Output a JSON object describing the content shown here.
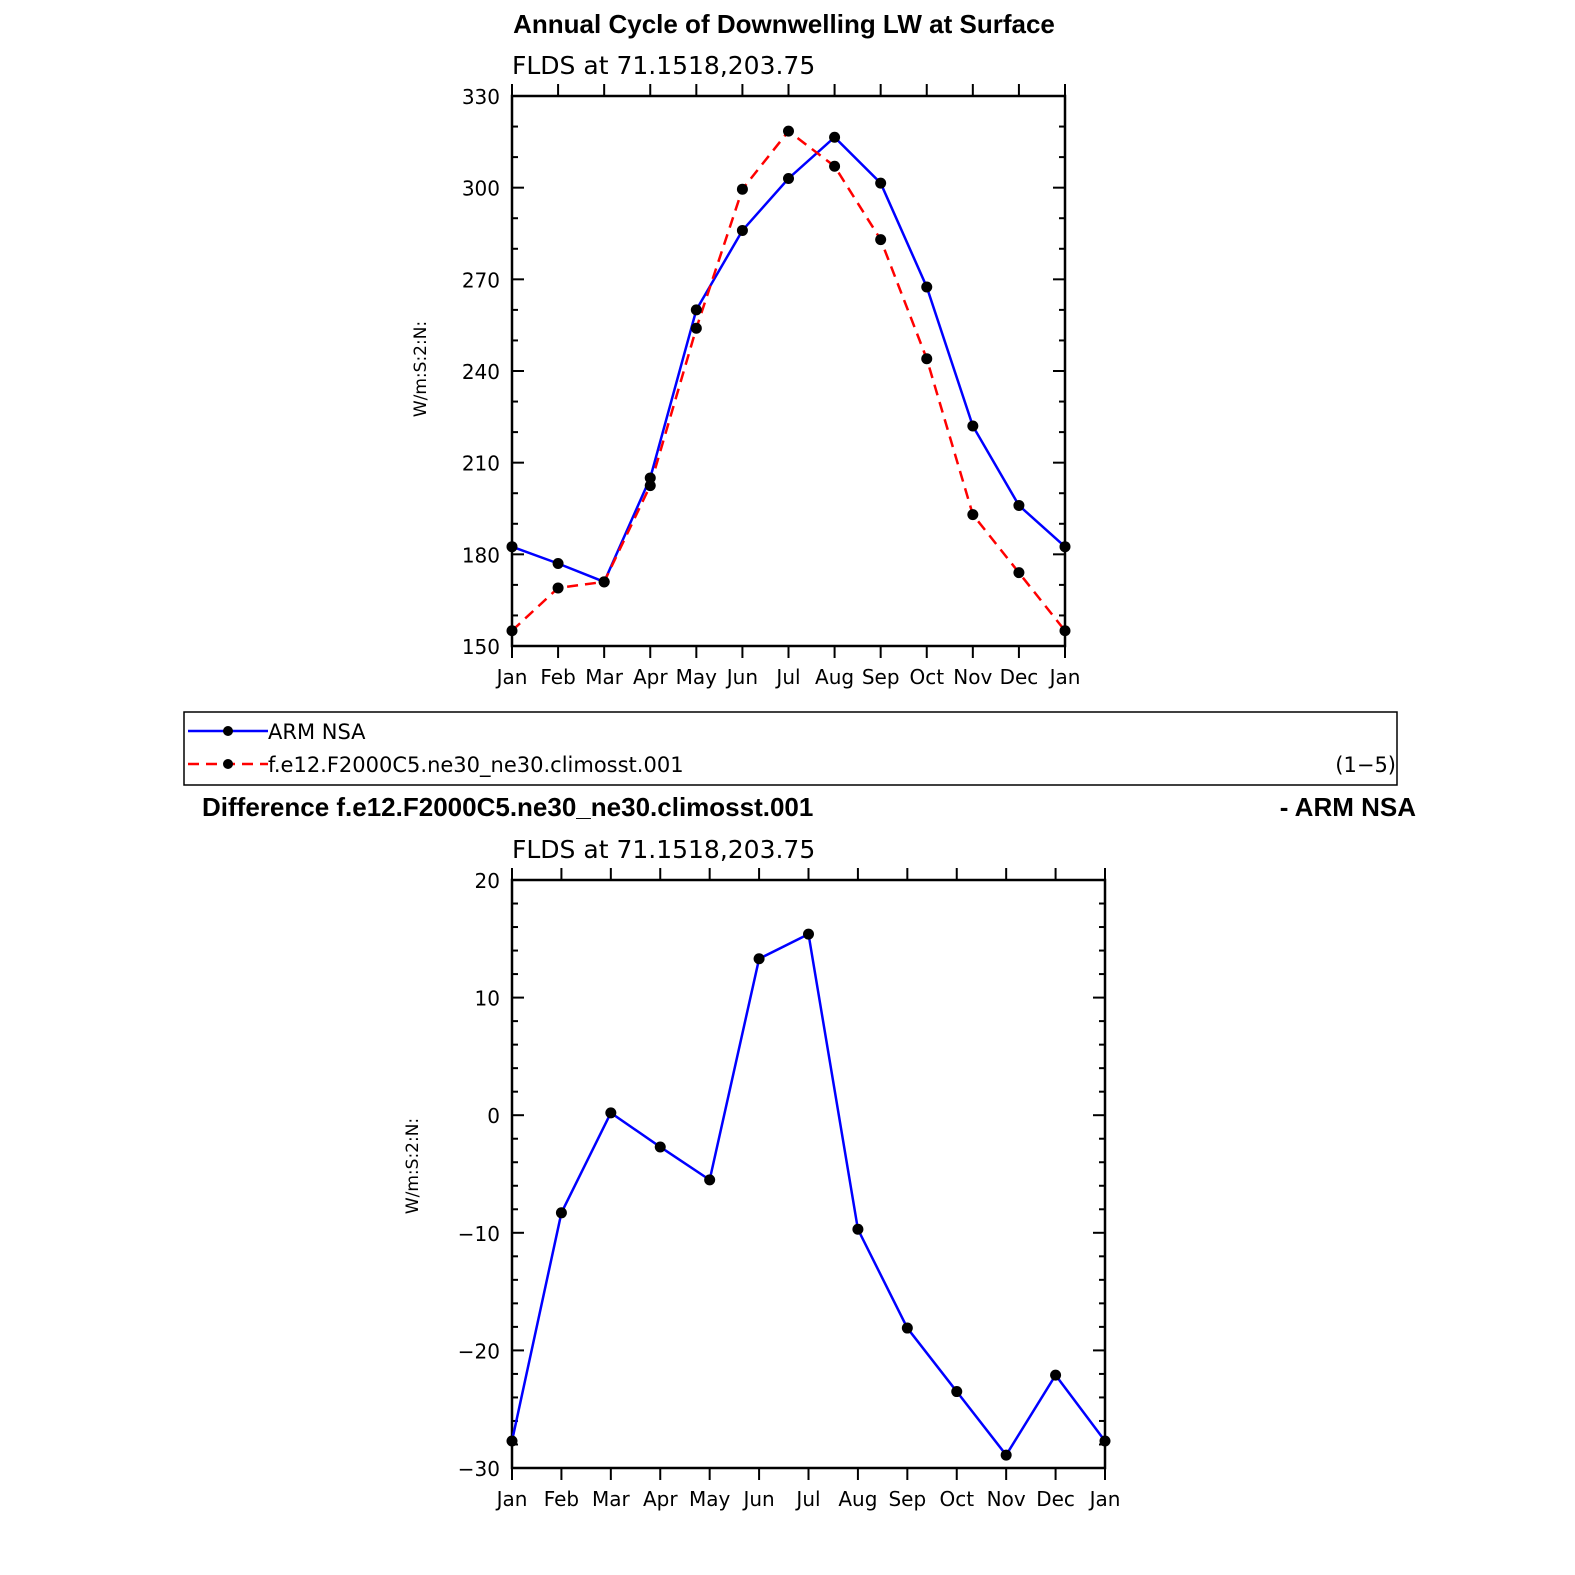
{
  "chart_data": [
    {
      "type": "line",
      "title": "Annual Cycle of Downwelling LW at Surface",
      "subtitle": "FLDS at 71.1518,203.75",
      "ylabel": "W/m:S:2:N:",
      "ylim": [
        150,
        330
      ],
      "yticks": [
        "330",
        "300",
        "270",
        "240",
        "210",
        "180",
        "150"
      ],
      "ytick_values": [
        330,
        300,
        270,
        240,
        210,
        180,
        150
      ],
      "categories": [
        "Jan",
        "Feb",
        "Mar",
        "Apr",
        "May",
        "Jun",
        "Jul",
        "Aug",
        "Sep",
        "Oct",
        "Nov",
        "Dec",
        "Jan"
      ],
      "series": [
        {
          "name": "ARM NSA",
          "color": "#0000ff",
          "dash": "solid",
          "values": [
            182.5,
            177,
            171,
            205,
            260,
            286,
            303,
            316.5,
            301.5,
            267.5,
            222,
            196,
            182.5
          ]
        },
        {
          "name": "f.e12.F2000C5.ne30_ne30.climosst.001",
          "color": "#ff0000",
          "dash": "dashed",
          "values": [
            155,
            169,
            171,
            202.5,
            254,
            299.5,
            318.5,
            307,
            283,
            244,
            193,
            174,
            155
          ]
        }
      ],
      "legend": {
        "placement": "bottom",
        "note": "(1−5)"
      }
    },
    {
      "type": "line",
      "title_left": "Difference f.e12.F2000C5.ne30_ne30.climosst.001",
      "title_right": "- ARM NSA",
      "subtitle": "FLDS at 71.1518,203.75",
      "ylabel": "W/m:S:2:N:",
      "ylim": [
        -30,
        20
      ],
      "yticks": [
        "20",
        "10",
        "0",
        "−10",
        "−20",
        "−30"
      ],
      "ytick_values": [
        20,
        10,
        0,
        -10,
        -20,
        -30
      ],
      "categories": [
        "Jan",
        "Feb",
        "Mar",
        "Apr",
        "May",
        "Jun",
        "Jul",
        "Aug",
        "Sep",
        "Oct",
        "Nov",
        "Dec",
        "Jan"
      ],
      "series": [
        {
          "color": "#0000ff",
          "dash": "solid",
          "values": [
            -27.7,
            -8.3,
            0.2,
            -2.7,
            -5.5,
            13.3,
            15.4,
            -9.7,
            -18.1,
            -23.5,
            -28.9,
            -22.1,
            -27.7
          ]
        }
      ]
    }
  ]
}
